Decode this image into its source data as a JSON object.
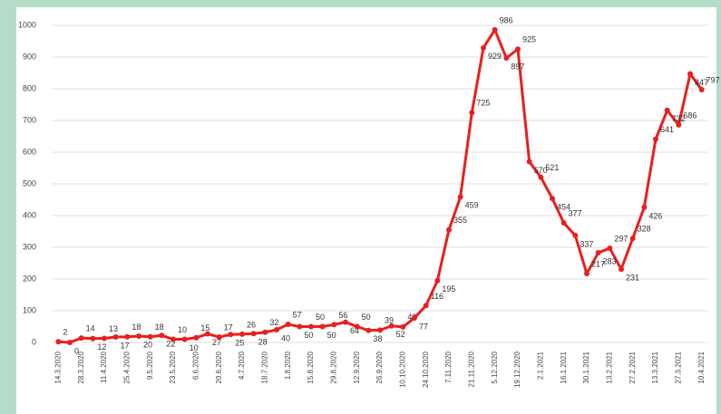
{
  "chart_data": {
    "type": "line",
    "categories": [
      "14.3.2020",
      null,
      "28.3.2020",
      null,
      "11.4.2020",
      null,
      "25.4.2020",
      null,
      "9.5.2020",
      null,
      "23.5.2020",
      null,
      "6.6.2020",
      null,
      "20.6.2020",
      null,
      "4.7.2020",
      null,
      "18.7.2020",
      null,
      "1.8.2020",
      null,
      "15.8.2020",
      null,
      "29.8.2020",
      null,
      "12.9.2020",
      null,
      "26.9.2020",
      null,
      "10.10.2020",
      null,
      "24.10.2020",
      null,
      "7.11.2020",
      null,
      "21.11.2020",
      null,
      "5.12.2020",
      null,
      "19.12.2020",
      null,
      "2.1.2021",
      null,
      "16.1.2021",
      null,
      "30.1.2021",
      null,
      "13.2.2021",
      null,
      "27.2.2021",
      null,
      "13.3.2021",
      null,
      "27.3.2021",
      null,
      "10.4.2021"
    ],
    "series": [
      {
        "color": "#e8201e",
        "values": [
          2,
          0,
          14,
          12,
          13,
          17,
          18,
          20,
          18,
          22,
          10,
          10,
          15,
          27,
          17,
          25,
          26,
          28,
          32,
          40,
          57,
          50,
          50,
          50,
          56,
          64,
          50,
          38,
          39,
          52,
          49,
          77,
          116,
          195,
          355,
          459,
          725,
          929,
          986,
          897,
          925,
          570,
          521,
          454,
          377,
          337,
          217,
          283,
          297,
          231,
          328,
          426,
          641,
          732,
          686,
          847,
          797
        ]
      }
    ],
    "ylim": [
      0,
      1000
    ],
    "yticks": [
      0,
      100,
      200,
      300,
      400,
      500,
      600,
      700,
      800,
      900,
      1000
    ],
    "grid": true
  }
}
